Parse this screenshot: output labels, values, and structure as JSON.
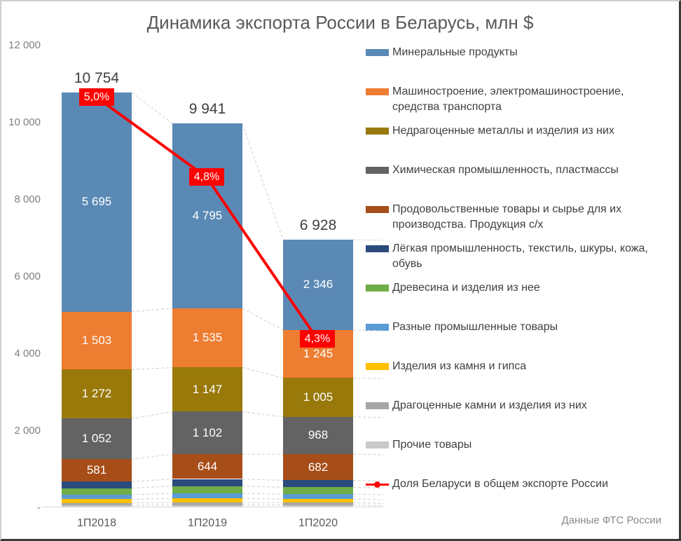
{
  "title": "Динамика экспорта России в Беларусь, млн $",
  "source": "Данные ФТС России",
  "colors": {
    "line_red": "#fe0000",
    "label_red_bg": "#fe0000",
    "title_text": "#595959",
    "axis_text": "#7f7f7f",
    "total_text": "#404040"
  },
  "chart_data": {
    "type": "bar",
    "subtype": "stacked-bar-with-line",
    "categories": [
      "1П2018",
      "1П2019",
      "1П2020"
    ],
    "totals": [
      10754,
      9941,
      6928
    ],
    "total_labels": [
      "10 754",
      "9 941",
      "6 928"
    ],
    "y_axis": {
      "ticks": [
        "12 000",
        "10 000",
        "8 000",
        "6 000",
        "4 000",
        "2 000",
        "-"
      ],
      "max": 12000,
      "min": 0,
      "step": 2000
    },
    "grid": "off",
    "legend_position": "right",
    "series": [
      {
        "name": "Минеральные продукты",
        "color": "#5b89b5",
        "values": [
          5695,
          4795,
          2346
        ],
        "value_labels": [
          "5 695",
          "4 795",
          "2 346"
        ],
        "estimated": false
      },
      {
        "name": "Машиностроение, электромашиностроение, средства транспорта",
        "color": "#ed7d31",
        "values": [
          1503,
          1535,
          1245
        ],
        "value_labels": [
          "1 503",
          "1 535",
          "1 245"
        ],
        "estimated": false
      },
      {
        "name": "Недрагоценные металлы и изделия из них",
        "color": "#98790a",
        "values": [
          1272,
          1147,
          1005
        ],
        "value_labels": [
          "1 272",
          "1 147",
          "1 005"
        ],
        "estimated": false
      },
      {
        "name": "Химическая промышленность, пластмассы",
        "color": "#636363",
        "values": [
          1052,
          1102,
          968
        ],
        "value_labels": [
          "1 052",
          "1 102",
          "968"
        ],
        "estimated": false
      },
      {
        "name": "Продовольственные товары и сырье для их производства. Продукция с/х",
        "color": "#a64d18",
        "values": [
          581,
          644,
          682
        ],
        "value_labels": [
          "581",
          "644",
          "682"
        ],
        "estimated": false
      },
      {
        "name": "Лёгкая промышленность, текстиль, шкуры, кожа, обувь",
        "color": "#2a4b7c",
        "values": [
          170,
          185,
          180
        ],
        "value_labels": null,
        "estimated": true
      },
      {
        "name": "Древесина и изделия из нее",
        "color": "#70ad47",
        "values": [
          170,
          190,
          175
        ],
        "value_labels": null,
        "estimated": true
      },
      {
        "name": "Разные промышленные товары",
        "color": "#5b9bd5",
        "values": [
          120,
          130,
          130
        ],
        "value_labels": null,
        "estimated": true
      },
      {
        "name": "Изделия из камня и гипса",
        "color": "#ffc000",
        "values": [
          95,
          110,
          95
        ],
        "value_labels": null,
        "estimated": true
      },
      {
        "name": "Драгоценные камни и изделия из них",
        "color": "#a6a6a6",
        "values": [
          60,
          60,
          60
        ],
        "value_labels": null,
        "estimated": true
      },
      {
        "name": "Прочие товары",
        "color": "#c9c9c9",
        "values": [
          36,
          43,
          42
        ],
        "value_labels": null,
        "estimated": true
      }
    ],
    "line_series": {
      "name": "Доля Беларуси в общем экспорте России",
      "color": "#fe0000",
      "values_pct": [
        5.0,
        4.8,
        4.3
      ],
      "labels": [
        "5,0%",
        "4,8%",
        "4,3%"
      ]
    }
  },
  "legend": {
    "items": [
      {
        "label": "Минеральные продукты",
        "color": "#5b89b5",
        "type": "swatch"
      },
      {
        "label": "Машиностроение, электромашиностроение, средства транспорта",
        "color": "#ed7d31",
        "type": "swatch"
      },
      {
        "label": "Недрагоценные металлы и изделия из них",
        "color": "#98790a",
        "type": "swatch"
      },
      {
        "label": "Химическая промышленность, пластмассы",
        "color": "#636363",
        "type": "swatch"
      },
      {
        "label": "Продовольственные товары и сырье для их производства. Продукция с/х",
        "color": "#a64d18",
        "type": "swatch"
      },
      {
        "label": "Лёгкая промышленность, текстиль, шкуры, кожа, обувь",
        "color": "#2a4b7c",
        "type": "swatch"
      },
      {
        "label": "Древесина и изделия из нее",
        "color": "#70ad47",
        "type": "swatch"
      },
      {
        "label": "Разные промышленные товары",
        "color": "#5b9bd5",
        "type": "swatch"
      },
      {
        "label": "Изделия из камня и гипса",
        "color": "#ffc000",
        "type": "swatch"
      },
      {
        "label": "Драгоценные камни и изделия из них",
        "color": "#a6a6a6",
        "type": "swatch"
      },
      {
        "label": "Прочие товары",
        "color": "#c9c9c9",
        "type": "swatch"
      },
      {
        "label": "Доля Беларуси в общем экспорте России",
        "color": "#fe0000",
        "type": "line"
      }
    ]
  }
}
